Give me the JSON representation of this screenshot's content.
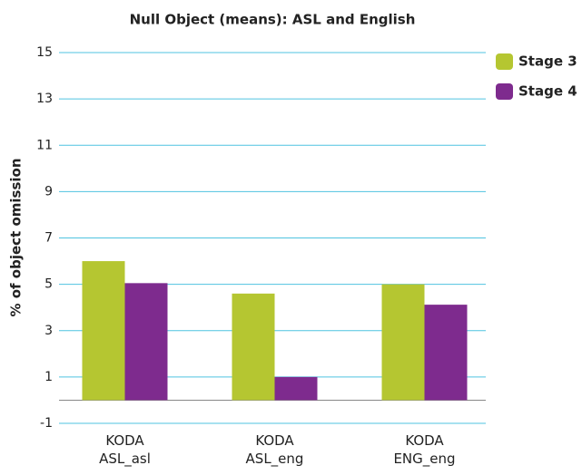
{
  "chart_data": {
    "type": "bar",
    "title": "Null Object (means): ASL and English",
    "y_label": "% of object omission",
    "categories": [
      "KODA\nASL_asl",
      "KODA\nASL_eng",
      "KODA\nENG_eng"
    ],
    "series": [
      {
        "name": "Stage 3",
        "color": "#b5c631",
        "values": [
          6.0,
          4.6,
          5.0
        ]
      },
      {
        "name": "Stage 4",
        "color": "#7e2b8e",
        "values": [
          5.05,
          1.0,
          4.12
        ]
      }
    ],
    "ylim": [
      -1,
      15
    ],
    "yticks": [
      -1,
      1,
      3,
      5,
      7,
      9,
      11,
      13,
      15
    ],
    "grid": true,
    "legend": "top-right"
  }
}
